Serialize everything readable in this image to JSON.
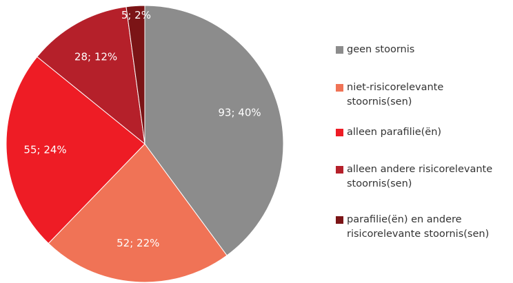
{
  "chart_data": {
    "type": "pie",
    "categories": [
      "geen stoornis",
      "niet-risicorelevante stoornis(sen)",
      "alleen parafilie(ën)",
      "alleen andere risicorelevante stoornis(sen)",
      "parafilie(ën) en andere risicorelevante stoornis(sen)"
    ],
    "values": [
      93,
      52,
      55,
      28,
      5
    ],
    "value_labels": [
      "93; 40%",
      "52; 22%",
      "55; 24%",
      "28; 12%",
      "5; 2%"
    ],
    "colors": [
      "#8c8c8c",
      "#f07356",
      "#ee1c25",
      "#b5202a",
      "#7b1416"
    ],
    "legend": "right"
  }
}
